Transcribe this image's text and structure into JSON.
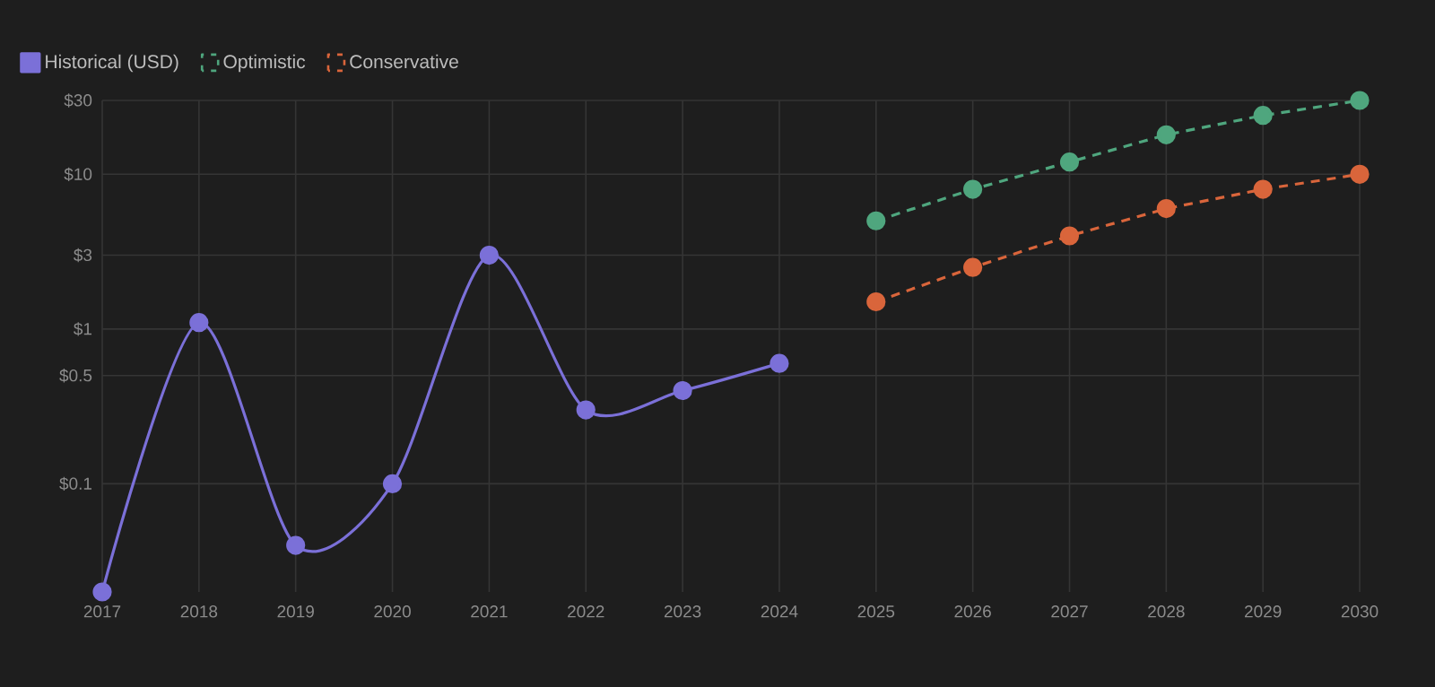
{
  "chart_data": {
    "type": "line",
    "categories": [
      "2017",
      "2018",
      "2019",
      "2020",
      "2021",
      "2022",
      "2023",
      "2024",
      "2025",
      "2026",
      "2027",
      "2028",
      "2029",
      "2030"
    ],
    "series": [
      {
        "name": "Historical (USD)",
        "color": "#7b70d8",
        "line_style": "solid",
        "values": [
          0.02,
          1.1,
          0.04,
          0.1,
          3,
          0.3,
          0.4,
          0.6,
          null,
          null,
          null,
          null,
          null,
          null
        ]
      },
      {
        "name": "Optimistic",
        "color": "#4fa67e",
        "line_style": "dashed",
        "values": [
          null,
          null,
          null,
          null,
          null,
          null,
          null,
          null,
          5,
          8,
          12,
          18,
          24,
          30
        ]
      },
      {
        "name": "Conservative",
        "color": "#d9653b",
        "line_style": "dashed",
        "values": [
          null,
          null,
          null,
          null,
          null,
          null,
          null,
          null,
          1.5,
          2.5,
          4,
          6,
          8,
          10
        ]
      }
    ],
    "log": "y",
    "ylim": [
      0.02,
      30
    ],
    "yticks": [
      {
        "value": 0.1,
        "label": "$0.1"
      },
      {
        "value": 0.5,
        "label": "$0.5"
      },
      {
        "value": 1,
        "label": "$1"
      },
      {
        "value": 3,
        "label": "$3"
      },
      {
        "value": 10,
        "label": "$10"
      },
      {
        "value": 30,
        "label": "$30"
      }
    ],
    "grid": true,
    "legend": "top left",
    "marker": "circle"
  }
}
